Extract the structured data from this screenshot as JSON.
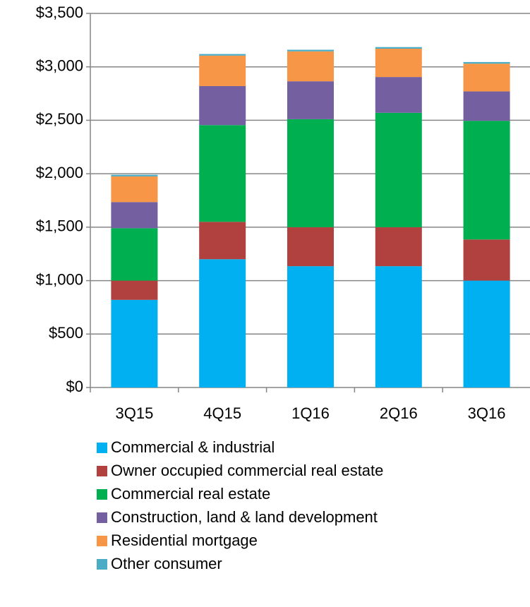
{
  "chart_data": {
    "type": "stacked_bar",
    "categories": [
      "3Q15",
      "4Q15",
      "1Q16",
      "2Q16",
      "3Q16"
    ],
    "series": [
      {
        "name": "Commercial & industrial",
        "color": "#00b0f0",
        "values": [
          820,
          1200,
          1135,
          1135,
          1000
        ]
      },
      {
        "name": "Owner occupied commercial real estate",
        "color": "#b0413e",
        "values": [
          180,
          350,
          365,
          365,
          385
        ]
      },
      {
        "name": "Commercial real estate",
        "color": "#00b050",
        "values": [
          490,
          905,
          1010,
          1070,
          1110
        ]
      },
      {
        "name": "Construction, land & land development",
        "color": "#7460a0",
        "values": [
          245,
          365,
          355,
          335,
          275
        ]
      },
      {
        "name": "Residential mortgage",
        "color": "#f79646",
        "values": [
          240,
          285,
          280,
          265,
          260
        ]
      },
      {
        "name": "Other consumer",
        "color": "#4bacc6",
        "values": [
          15,
          15,
          15,
          15,
          15
        ]
      }
    ],
    "ylim": [
      0,
      3500
    ],
    "yticks": [
      {
        "value": 0,
        "label": "$0"
      },
      {
        "value": 500,
        "label": "$500"
      },
      {
        "value": 1000,
        "label": "$1,000"
      },
      {
        "value": 1500,
        "label": "$1,500"
      },
      {
        "value": 2000,
        "label": "$2,000"
      },
      {
        "value": 2500,
        "label": "$2,500"
      },
      {
        "value": 3000,
        "label": "$3,000"
      },
      {
        "value": 3500,
        "label": "$3,500"
      }
    ],
    "grid": true,
    "legend": "bottom"
  }
}
